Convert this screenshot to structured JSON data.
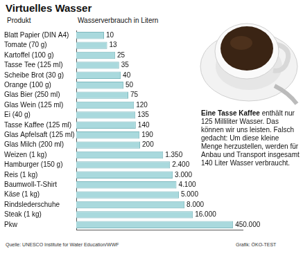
{
  "chart_data": {
    "type": "bar",
    "orientation": "horizontal",
    "title": "Virtuelles Wasser",
    "ylabel": "Produkt",
    "xlabel": "Wasserverbrauch in Litern",
    "categories": [
      "Blatt Papier (DIN A4)",
      "Tomate (70 g)",
      "Kartoffel (100 g)",
      "Tasse Tee (125 ml)",
      "Scheibe Brot (30 g)",
      "Orange (100 g)",
      "Glas Bier (250 ml)",
      "Glas Wein (125 ml)",
      "Ei (40 g)",
      "Tasse Kaffee (125 ml)",
      "Glas Apfelsaft (125 ml)",
      "Glas Milch (200 ml)",
      "Weizen (1 kg)",
      "Hamburger (150 g)",
      "Reis (1 kg)",
      "Baumwoll-T-Shirt",
      "Käse (1 kg)",
      "Rindslederschuhe",
      "Steak (1 kg)",
      "Pkw"
    ],
    "values": [
      10,
      13,
      25,
      35,
      40,
      50,
      75,
      120,
      135,
      140,
      190,
      200,
      1350,
      2400,
      3000,
      4100,
      5000,
      8000,
      16000,
      450000
    ],
    "value_labels": [
      "10",
      "13",
      "25",
      "35",
      "40",
      "50",
      "75",
      "120",
      "135",
      "140",
      "190",
      "200",
      "1.350",
      "2.400",
      "3.000",
      "4.100",
      "5.000",
      "8.000",
      "16.000",
      "450.000"
    ],
    "color": "#a9d9dd",
    "xlim": [
      1,
      1000000
    ],
    "log": "x",
    "grid": false,
    "tick_labels": "y",
    "data_labels": true,
    "annotations": [
      "Eine Tasse Kaffee",
      "enthält nur 125 Milliliter Wasser. Das können wir uns leisten. Falsch gedacht: Um diese kleine Menge herzustellen, werden für Anbau und Transport insgesamt 140 Liter Wasser verbraucht."
    ],
    "source": "Quelle: UNESCO Institute for Water Education/WWF",
    "credit": "Grafik: ÖKO-TEST"
  }
}
